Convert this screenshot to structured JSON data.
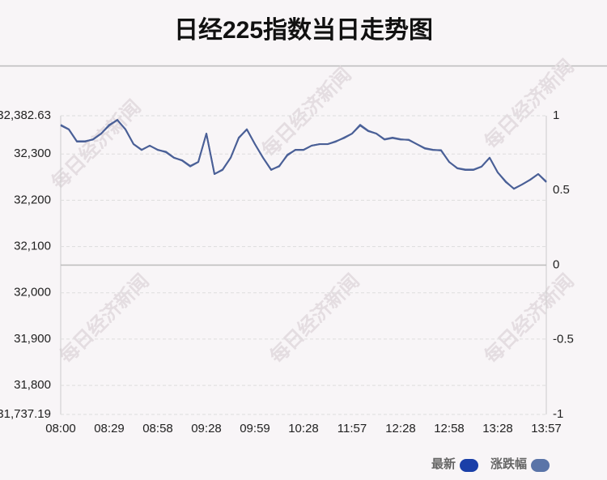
{
  "chart_data": {
    "type": "line",
    "title": "日经225指数当日走势图",
    "watermark": "每日经济新闻",
    "categories": [
      "08:00",
      null,
      null,
      null,
      null,
      null,
      "08:29",
      null,
      null,
      null,
      null,
      null,
      "08:58",
      null,
      null,
      null,
      null,
      null,
      "09:28",
      null,
      null,
      null,
      null,
      null,
      "09:59",
      null,
      null,
      null,
      null,
      null,
      "10:28",
      null,
      null,
      null,
      null,
      null,
      "11:57",
      null,
      null,
      null,
      null,
      null,
      "12:28",
      null,
      null,
      null,
      null,
      null,
      "12:58",
      null,
      null,
      null,
      null,
      null,
      "13:28",
      null,
      null,
      null,
      null,
      null,
      "13:57"
    ],
    "series": [
      {
        "name": "最新",
        "color": "#1a3fa8",
        "axis": "y",
        "values": [
          32361.6,
          32352.9,
          32326.7,
          32326.7,
          32331.9,
          32344.1,
          32361.6,
          32373.9,
          32352.9,
          32321.4,
          32309.2,
          32317.9,
          32309.2,
          32303.9,
          32291.7,
          32286.4,
          32274.2,
          32282.9,
          32344.1,
          32256.7,
          32265.4,
          32291.7,
          32335.4,
          32352.9,
          32321.4,
          32291.7,
          32265.4,
          32274.2,
          32296.9,
          32309.2,
          32309.2,
          32317.9,
          32321.4,
          32321.4,
          32326.7,
          32335.4,
          32344.1,
          32361.6,
          32349.4,
          32344.1,
          32331.9,
          32335.4,
          32331.9,
          32330.2,
          32321.4,
          32312.6,
          32309.2,
          32307.4,
          32282.9,
          32269.0,
          32265.4,
          32265.4,
          32272.4,
          32291.7,
          32260.2,
          32239.2,
          32225.2,
          32233.9,
          32244.4,
          32256.7,
          32239.2
        ]
      },
      {
        "name": "涨跌幅",
        "color": "#5a74a8",
        "axis": "y2",
        "values": [
          0.94,
          0.91,
          0.83,
          0.83,
          0.84,
          0.88,
          0.94,
          0.97,
          0.91,
          0.81,
          0.77,
          0.8,
          0.77,
          0.76,
          0.72,
          0.7,
          0.66,
          0.69,
          0.88,
          0.61,
          0.64,
          0.72,
          0.85,
          0.91,
          0.81,
          0.72,
          0.64,
          0.66,
          0.74,
          0.77,
          0.77,
          0.8,
          0.81,
          0.81,
          0.83,
          0.85,
          0.88,
          0.94,
          0.9,
          0.88,
          0.84,
          0.85,
          0.84,
          0.84,
          0.81,
          0.78,
          0.77,
          0.77,
          0.69,
          0.65,
          0.64,
          0.64,
          0.66,
          0.72,
          0.62,
          0.56,
          0.51,
          0.54,
          0.57,
          0.61,
          0.56
        ]
      }
    ],
    "ylim": [
      31737.19,
      32382.63
    ],
    "yticks": [
      {
        "value": 32382.63,
        "label": "32,382.63"
      },
      {
        "value": 32300,
        "label": "32,300"
      },
      {
        "value": 32200,
        "label": "32,200"
      },
      {
        "value": 32100,
        "label": "32,100"
      },
      {
        "value": 32000,
        "label": "32,000"
      },
      {
        "value": 31900,
        "label": "31,900"
      },
      {
        "value": 31800,
        "label": "31,800"
      },
      {
        "value": 31737.19,
        "label": "31,737.19"
      }
    ],
    "y2lim": [
      -1,
      1
    ],
    "y2ticks": [
      1,
      0.5,
      0,
      -0.5,
      -1
    ],
    "grid": true
  }
}
